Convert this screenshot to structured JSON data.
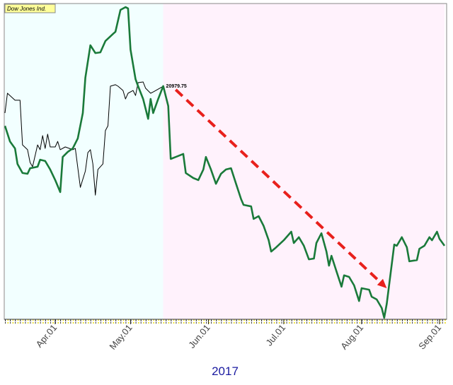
{
  "chart_data": {
    "type": "line",
    "legend_corner": "top-left",
    "xlabel": "2017",
    "xlim": [
      "2017-03-12",
      "2017-09-03"
    ],
    "ylim": [
      20050,
      21300
    ],
    "xticks": [
      {
        "value": "2017-04-01",
        "label": "Apr.01"
      },
      {
        "value": "2017-05-01",
        "label": "May.01"
      },
      {
        "value": "2017-06-01",
        "label": "Jun.01"
      },
      {
        "value": "2017-07-01",
        "label": "Jul.01"
      },
      {
        "value": "2017-08-01",
        "label": "Aug.01"
      },
      {
        "value": "2017-09-01",
        "label": "Sep.01"
      }
    ],
    "regions": [
      {
        "from": "2017-03-12",
        "to": "2017-05-14",
        "color": "#f2ffff"
      },
      {
        "from": "2017-05-14",
        "to": "2017-09-03",
        "color": "#fff2fc"
      }
    ],
    "series": [
      {
        "name": "Dow Jones Ind.",
        "color": "#1a7a3a",
        "width": 2.6,
        "x": [
          "2017-03-12",
          "2017-03-14",
          "2017-03-16",
          "2017-03-17",
          "2017-03-19",
          "2017-03-21",
          "2017-03-22",
          "2017-03-25",
          "2017-03-26",
          "2017-03-28",
          "2017-03-30",
          "2017-04-01",
          "2017-04-03",
          "2017-04-04",
          "2017-04-06",
          "2017-04-08",
          "2017-04-10",
          "2017-04-12",
          "2017-04-13",
          "2017-04-15",
          "2017-04-17",
          "2017-04-19",
          "2017-04-21",
          "2017-04-24",
          "2017-04-25",
          "2017-04-27",
          "2017-04-29",
          "2017-04-30",
          "2017-05-01",
          "2017-05-03",
          "2017-05-04",
          "2017-05-06",
          "2017-05-08",
          "2017-05-09",
          "2017-05-10",
          "2017-05-12",
          "2017-05-14",
          "2017-05-16",
          "2017-05-17",
          "2017-05-19",
          "2017-05-22",
          "2017-05-23",
          "2017-05-26",
          "2017-05-28",
          "2017-05-30",
          "2017-05-31",
          "2017-06-02",
          "2017-06-04",
          "2017-06-06",
          "2017-06-08",
          "2017-06-10",
          "2017-06-12",
          "2017-06-14",
          "2017-06-15",
          "2017-06-18",
          "2017-06-19",
          "2017-06-21",
          "2017-06-23",
          "2017-06-25",
          "2017-06-26",
          "2017-06-28",
          "2017-07-01",
          "2017-07-04",
          "2017-07-05",
          "2017-07-07",
          "2017-07-09",
          "2017-07-11",
          "2017-07-13",
          "2017-07-14",
          "2017-07-16",
          "2017-07-18",
          "2017-07-19",
          "2017-07-20",
          "2017-07-22",
          "2017-07-24",
          "2017-07-25",
          "2017-07-27",
          "2017-07-29",
          "2017-07-31",
          "2017-08-01",
          "2017-08-04",
          "2017-08-05",
          "2017-08-07",
          "2017-08-09",
          "2017-08-10",
          "2017-08-11",
          "2017-08-14",
          "2017-08-15",
          "2017-08-17",
          "2017-08-19",
          "2017-08-20",
          "2017-08-23",
          "2017-08-24",
          "2017-08-26",
          "2017-08-28",
          "2017-08-29",
          "2017-08-31",
          "2017-09-01",
          "2017-09-03"
        ],
        "values": [
          20821,
          20759,
          20731,
          20669,
          20633,
          20630,
          20652,
          20658,
          20686,
          20681,
          20647,
          20605,
          20557,
          20697,
          20717,
          20731,
          20771,
          20872,
          21013,
          21142,
          21111,
          21114,
          21159,
          21187,
          21196,
          21283,
          21294,
          21289,
          21125,
          21007,
          20979,
          20928,
          20849,
          20928,
          20872,
          20928,
          20979.75,
          20900,
          20689,
          20697,
          20709,
          20633,
          20613,
          20605,
          20647,
          20697,
          20647,
          20590,
          20630,
          20647,
          20652,
          20590,
          20529,
          20506,
          20500,
          20450,
          20461,
          20422,
          20365,
          20320,
          20337,
          20365,
          20399,
          20354,
          20377,
          20343,
          20289,
          20292,
          20354,
          20393,
          20320,
          20264,
          20303,
          20241,
          20180,
          20225,
          20219,
          20185,
          20123,
          20174,
          20168,
          20140,
          20129,
          20095,
          20056,
          20112,
          20348,
          20343,
          20377,
          20337,
          20281,
          20286,
          20331,
          20343,
          20377,
          20365,
          20399,
          20371,
          20343
        ]
      },
      {
        "color": "#000000",
        "width": 1,
        "x": [
          "2017-03-12",
          "2017-03-13",
          "2017-03-16",
          "2017-03-18",
          "2017-03-19",
          "2017-03-21",
          "2017-03-22",
          "2017-03-23",
          "2017-03-25",
          "2017-03-26",
          "2017-03-27",
          "2017-03-28",
          "2017-03-29",
          "2017-03-30",
          "2017-04-01",
          "2017-04-02",
          "2017-04-03",
          "2017-04-05",
          "2017-04-08",
          "2017-04-09",
          "2017-04-11",
          "2017-04-13",
          "2017-04-14",
          "2017-04-15",
          "2017-04-16",
          "2017-04-17",
          "2017-04-18",
          "2017-04-20",
          "2017-04-21",
          "2017-04-22",
          "2017-04-23",
          "2017-04-25",
          "2017-04-26",
          "2017-04-28",
          "2017-04-29",
          "2017-04-30",
          "2017-05-02",
          "2017-05-03",
          "2017-05-04",
          "2017-05-06",
          "2017-05-07",
          "2017-05-09",
          "2017-05-10",
          "2017-05-13",
          "2017-05-14"
        ],
        "values": [
          20872,
          20951,
          20923,
          20923,
          20745,
          20726,
          20675,
          20658,
          20745,
          20726,
          20782,
          20731,
          20788,
          20737,
          20737,
          20759,
          20726,
          20737,
          20726,
          20731,
          20576,
          20641,
          20714,
          20726,
          20669,
          20545,
          20647,
          20669,
          20802,
          20821,
          20979,
          20985,
          20979,
          20962,
          20928,
          20951,
          20962,
          20942,
          20993,
          20996,
          20971,
          20951,
          20956,
          20973,
          20979
        ]
      }
    ],
    "annotations": [
      {
        "x": "2017-05-14",
        "y": 20979.75,
        "text": "20979.75"
      }
    ],
    "trend_arrow": {
      "x": [
        "2017-05-19",
        "2017-08-11"
      ],
      "y": [
        20965,
        20174
      ],
      "color": "#e8201c"
    }
  }
}
